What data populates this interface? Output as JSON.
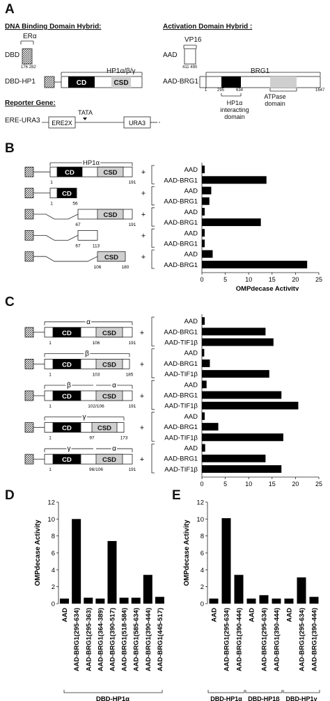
{
  "panel_a": {
    "letter": "A",
    "dbd_hybrid_title": "DNA Binding Domain Hybrid:",
    "aad_hybrid_title": "Activation Domain Hybrid :",
    "dbd_label": "DBD",
    "er_alpha": "ERα",
    "er_nums": "176 282",
    "dbd_hp1_label": "DBD-HP1",
    "hp1_label": "HP1α/β/γ",
    "cd": "CD",
    "csd": "CSD",
    "reporter_title": "Reporter Gene:",
    "tata": "TATA",
    "ere_ura3_label": "ERE-URA3",
    "ere_box": "ERE2X",
    "ura3_box": "URA3",
    "aad_label": "AAD",
    "vp16": "VP16",
    "vp16_nums": "411 490",
    "aad_brg1_label": "AAD-BRG1",
    "brg1": "BRG1",
    "brg1_num_start": "1",
    "brg1_num_a": "295",
    "brg1_num_b": "634",
    "brg1_num_end": "1647",
    "hp1_interacting": [
      "HP1α",
      "interacting",
      "domain"
    ],
    "atpase": [
      "ATPase",
      "domain"
    ]
  },
  "panel_b": {
    "letter": "B",
    "hp1_label": "HP1α",
    "constructs": [
      {
        "nums": [
          "1",
          "191"
        ]
      },
      {
        "nums": [
          "1",
          "56"
        ]
      },
      {
        "nums": [
          "67",
          "191"
        ]
      },
      {
        "nums": [
          "67",
          "113"
        ]
      },
      {
        "nums": [
          "106",
          "180"
        ]
      }
    ],
    "plus": "+"
  },
  "panel_c": {
    "letter": "C",
    "constructs": [
      {
        "label": "α",
        "nums": [
          "1",
          "106",
          "191"
        ]
      },
      {
        "label": "β",
        "nums": [
          "1",
          "103",
          "185"
        ]
      },
      {
        "label": "β",
        "label2": "α",
        "nums": [
          "1",
          "102/106",
          "191"
        ]
      },
      {
        "label": "γ",
        "nums": [
          "1",
          "97",
          "173"
        ]
      },
      {
        "label": "γ",
        "label2": "α",
        "nums": [
          "1",
          "96/106",
          "191"
        ]
      }
    ]
  },
  "panel_d": {
    "letter": "D",
    "group_label": "DBD-HP1α"
  },
  "panel_e": {
    "letter": "E",
    "group_labels": [
      "DBD-HP1α",
      "DBD-HP1β",
      "DBD-HP1γ"
    ]
  },
  "chart_data": [
    {
      "type": "bar",
      "panel": "B",
      "orientation": "horizontal",
      "categories": [
        "AAD",
        "AAD-BRG1",
        "AAD",
        "AAD-BRG1",
        "AAD",
        "AAD-BRG1",
        "AAD",
        "AAD-BRG1",
        "AAD",
        "AAD-BRG1"
      ],
      "values": [
        0.6,
        13.8,
        2.0,
        1.6,
        0.6,
        12.6,
        0.6,
        0.6,
        2.3,
        22.5
      ],
      "xlabel": "OMPdecase Activity",
      "xlim": [
        0,
        25
      ],
      "xticks": [
        "0",
        "5",
        "10",
        "15",
        "20",
        "25"
      ]
    },
    {
      "type": "bar",
      "panel": "C",
      "orientation": "horizontal",
      "categories": [
        "AAD",
        "AAD-BRG1",
        "AAD-TIF1β",
        "AAD",
        "AAD-BRG1",
        "AAD-TIF1β",
        "AAD",
        "AAD-BRG1",
        "AAD-TIF1β",
        "AAD",
        "AAD-BRG1",
        "AAD-TIF1β",
        "AAD",
        "AAD-BRG1",
        "AAD-TIF1β"
      ],
      "values": [
        0.6,
        13.6,
        15.3,
        0.5,
        1.7,
        14.4,
        1.0,
        17.0,
        20.6,
        0.6,
        3.5,
        17.4,
        0.7,
        13.6,
        17.0
      ],
      "xlabel": "OMPdecase Activity",
      "xlim": [
        0,
        25
      ],
      "xticks": [
        "0",
        "5",
        "10",
        "15",
        "20",
        "25"
      ]
    },
    {
      "type": "bar",
      "panel": "D",
      "categories": [
        "AAD",
        "AAD-BRG1(295-634)",
        "AAD-BRG1(295-363)",
        "AAD-BRG1(364-389)",
        "AAD-BRG1(390-517)",
        "AAD-BRG1(518-584)",
        "AAD-BRG1(585-634)",
        "AAD-BRG1(390-444)",
        "AAD-BRG1(445-517)"
      ],
      "values": [
        0.6,
        10.0,
        0.7,
        0.6,
        7.4,
        0.7,
        0.7,
        3.4,
        0.8
      ],
      "ylabel": "OMPdecase Activity",
      "ylim": [
        0,
        12
      ],
      "yticks": [
        "0",
        "2",
        "4",
        "6",
        "8",
        "10",
        "12"
      ]
    },
    {
      "type": "bar",
      "panel": "E",
      "categories": [
        "AAD",
        "AAD-BRG1(295-634)",
        "AAD-BRG1(390-444)",
        "AAD",
        "AAD-BRG1(295-634)",
        "AAD-BRG1(390-444)",
        "AAD",
        "AAD-BRG1(295-634)",
        "AAD-BRG1(390-444)"
      ],
      "values": [
        0.6,
        10.1,
        3.4,
        0.6,
        1.0,
        0.6,
        0.6,
        3.1,
        0.8
      ],
      "ylabel": "OMPdecase Activity",
      "ylim": [
        0,
        12
      ],
      "yticks": [
        "0",
        "2",
        "4",
        "6",
        "8",
        "10",
        "12"
      ]
    }
  ]
}
